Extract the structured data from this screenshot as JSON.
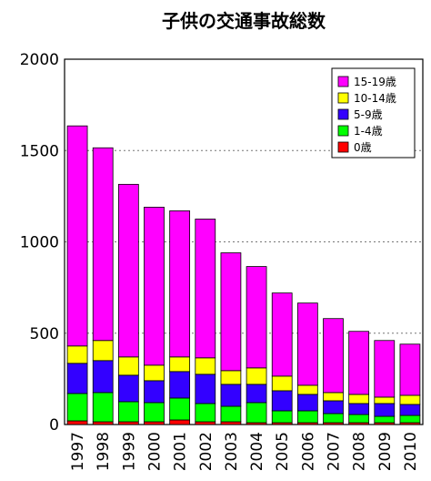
{
  "chart_data": {
    "type": "bar",
    "stacked": true,
    "title": "子供の交通事故総数",
    "xlabel": "",
    "ylabel": "",
    "ylim": [
      0,
      2000
    ],
    "yticks": [
      0,
      500,
      1000,
      1500,
      2000
    ],
    "grid": "horizontal-dashed",
    "legend_position": "top-right",
    "categories": [
      "1997",
      "1998",
      "1999",
      "2000",
      "2001",
      "2002",
      "2003",
      "2004",
      "2005",
      "2006",
      "2007",
      "2008",
      "2009",
      "2010"
    ],
    "series": [
      {
        "name": "0歳",
        "color": "#ff0000",
        "values": [
          20,
          15,
          15,
          15,
          25,
          15,
          15,
          10,
          10,
          10,
          10,
          10,
          10,
          10
        ]
      },
      {
        "name": "1-4歳",
        "color": "#00ff00",
        "values": [
          150,
          160,
          110,
          105,
          120,
          100,
          85,
          110,
          65,
          65,
          50,
          45,
          35,
          40
        ]
      },
      {
        "name": "5-9歳",
        "color": "#3300ff",
        "values": [
          165,
          175,
          145,
          120,
          145,
          160,
          120,
          100,
          110,
          90,
          70,
          60,
          70,
          60
        ]
      },
      {
        "name": "10-14歳",
        "color": "#ffff00",
        "values": [
          95,
          110,
          100,
          85,
          80,
          90,
          75,
          90,
          80,
          50,
          45,
          50,
          35,
          50
        ]
      },
      {
        "name": "15-19歳",
        "color": "#ff00ff",
        "values": [
          1205,
          1055,
          945,
          865,
          800,
          760,
          645,
          555,
          455,
          450,
          405,
          345,
          310,
          280
        ]
      }
    ]
  }
}
